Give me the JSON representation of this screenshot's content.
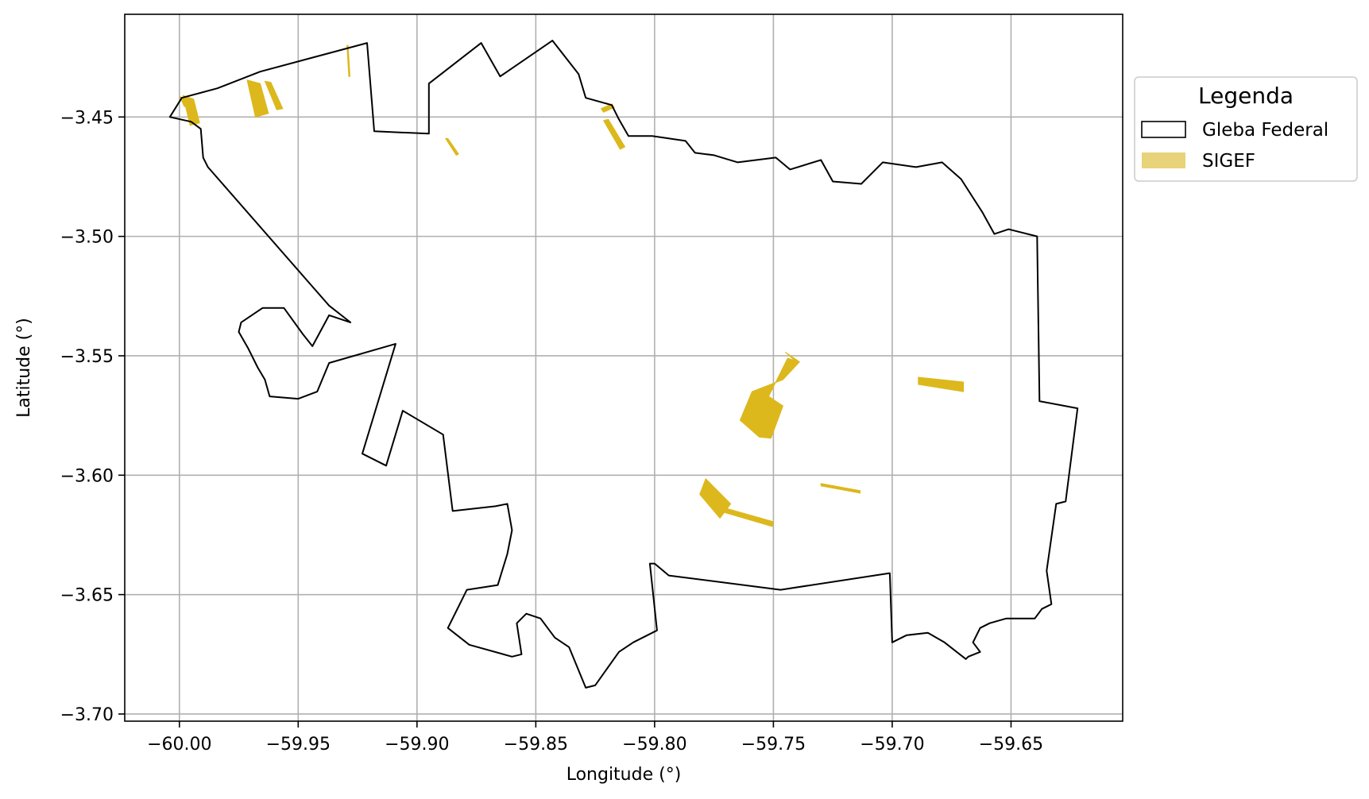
{
  "map": {
    "xlabel": "Longitude (°)",
    "ylabel": "Latitude (°)",
    "xlim": [
      -60.023,
      -59.603
    ],
    "ylim": [
      -3.703,
      -3.407
    ],
    "x_ticks": [
      {
        "value": -60.0,
        "label": "−60.00"
      },
      {
        "value": -59.95,
        "label": "−59.95"
      },
      {
        "value": -59.9,
        "label": "−59.90"
      },
      {
        "value": -59.85,
        "label": "−59.85"
      },
      {
        "value": -59.8,
        "label": "−59.80"
      },
      {
        "value": -59.75,
        "label": "−59.75"
      },
      {
        "value": -59.7,
        "label": "−59.70"
      },
      {
        "value": -59.65,
        "label": "−59.65"
      }
    ],
    "y_ticks": [
      {
        "value": -3.45,
        "label": "−3.45"
      },
      {
        "value": -3.5,
        "label": "−3.50"
      },
      {
        "value": -3.55,
        "label": "−3.55"
      },
      {
        "value": -3.6,
        "label": "−3.60"
      },
      {
        "value": -3.65,
        "label": "−3.65"
      },
      {
        "value": -3.7,
        "label": "−3.70"
      }
    ],
    "grid": true,
    "colors": {
      "boundary": "#000000",
      "sigef": "#dcb81c",
      "sigef_legend": "#e8d27a",
      "grid": "#b0b0b0"
    },
    "legend": {
      "title": "Legenda",
      "position": "outside-right-top",
      "items": [
        {
          "label": "Gleba Federal",
          "kind": "boundary"
        },
        {
          "label": "SIGEF",
          "kind": "sigef"
        }
      ]
    },
    "gleba_boundary": [
      [
        -60.004,
        -3.45
      ],
      [
        -59.999,
        -3.442
      ],
      [
        -59.984,
        -3.438
      ],
      [
        -59.966,
        -3.431
      ],
      [
        -59.921,
        -3.419
      ],
      [
        -59.918,
        -3.456
      ],
      [
        -59.895,
        -3.457
      ],
      [
        -59.895,
        -3.436
      ],
      [
        -59.873,
        -3.419
      ],
      [
        -59.865,
        -3.433
      ],
      [
        -59.843,
        -3.418
      ],
      [
        -59.832,
        -3.432
      ],
      [
        -59.829,
        -3.442
      ],
      [
        -59.818,
        -3.445
      ],
      [
        -59.815,
        -3.451
      ],
      [
        -59.811,
        -3.458
      ],
      [
        -59.801,
        -3.458
      ],
      [
        -59.787,
        -3.46
      ],
      [
        -59.783,
        -3.465
      ],
      [
        -59.775,
        -3.466
      ],
      [
        -59.765,
        -3.469
      ],
      [
        -59.749,
        -3.467
      ],
      [
        -59.743,
        -3.472
      ],
      [
        -59.73,
        -3.468
      ],
      [
        -59.725,
        -3.477
      ],
      [
        -59.713,
        -3.478
      ],
      [
        -59.704,
        -3.469
      ],
      [
        -59.69,
        -3.471
      ],
      [
        -59.679,
        -3.469
      ],
      [
        -59.671,
        -3.476
      ],
      [
        -59.662,
        -3.49
      ],
      [
        -59.657,
        -3.499
      ],
      [
        -59.651,
        -3.497
      ],
      [
        -59.639,
        -3.5
      ],
      [
        -59.638,
        -3.569
      ],
      [
        -59.622,
        -3.572
      ],
      [
        -59.627,
        -3.611
      ],
      [
        -59.631,
        -3.612
      ],
      [
        -59.635,
        -3.64
      ],
      [
        -59.633,
        -3.654
      ],
      [
        -59.637,
        -3.656
      ],
      [
        -59.64,
        -3.66
      ],
      [
        -59.652,
        -3.66
      ],
      [
        -59.659,
        -3.662
      ],
      [
        -59.663,
        -3.664
      ],
      [
        -59.666,
        -3.67
      ],
      [
        -59.663,
        -3.674
      ],
      [
        -59.668,
        -3.676
      ],
      [
        -59.669,
        -3.677
      ],
      [
        -59.678,
        -3.67
      ],
      [
        -59.685,
        -3.666
      ],
      [
        -59.694,
        -3.667
      ],
      [
        -59.7,
        -3.67
      ],
      [
        -59.701,
        -3.641
      ],
      [
        -59.747,
        -3.648
      ],
      [
        -59.794,
        -3.642
      ],
      [
        -59.8,
        -3.637
      ],
      [
        -59.802,
        -3.637
      ],
      [
        -59.799,
        -3.665
      ],
      [
        -59.809,
        -3.67
      ],
      [
        -59.815,
        -3.674
      ],
      [
        -59.825,
        -3.688
      ],
      [
        -59.829,
        -3.689
      ],
      [
        -59.836,
        -3.672
      ],
      [
        -59.842,
        -3.668
      ],
      [
        -59.848,
        -3.66
      ],
      [
        -59.854,
        -3.658
      ],
      [
        -59.858,
        -3.662
      ],
      [
        -59.856,
        -3.675
      ],
      [
        -59.86,
        -3.676
      ],
      [
        -59.878,
        -3.671
      ],
      [
        -59.887,
        -3.664
      ],
      [
        -59.879,
        -3.648
      ],
      [
        -59.866,
        -3.646
      ],
      [
        -59.862,
        -3.633
      ],
      [
        -59.86,
        -3.623
      ],
      [
        -59.862,
        -3.612
      ],
      [
        -59.867,
        -3.613
      ],
      [
        -59.885,
        -3.615
      ],
      [
        -59.889,
        -3.583
      ],
      [
        -59.906,
        -3.573
      ],
      [
        -59.913,
        -3.596
      ],
      [
        -59.923,
        -3.591
      ],
      [
        -59.909,
        -3.545
      ],
      [
        -59.937,
        -3.553
      ],
      [
        -59.942,
        -3.565
      ],
      [
        -59.95,
        -3.568
      ],
      [
        -59.962,
        -3.567
      ],
      [
        -59.964,
        -3.56
      ],
      [
        -59.967,
        -3.555
      ],
      [
        -59.971,
        -3.547
      ],
      [
        -59.975,
        -3.54
      ],
      [
        -59.974,
        -3.536
      ],
      [
        -59.965,
        -3.53
      ],
      [
        -59.956,
        -3.53
      ],
      [
        -59.948,
        -3.541
      ],
      [
        -59.944,
        -3.546
      ],
      [
        -59.937,
        -3.533
      ],
      [
        -59.928,
        -3.536
      ],
      [
        -59.937,
        -3.529
      ],
      [
        -59.988,
        -3.471
      ],
      [
        -59.99,
        -3.467
      ],
      [
        -59.991,
        -3.455
      ],
      [
        -59.995,
        -3.452
      ],
      [
        -60.004,
        -3.45
      ]
    ],
    "sigef_parcels": [
      [
        [
          -59.9985,
          -3.441
        ],
        [
          -59.994,
          -3.4425
        ],
        [
          -59.9915,
          -3.4525
        ],
        [
          -59.9955,
          -3.4535
        ]
      ],
      [
        [
          -59.9998,
          -3.4415
        ],
        [
          -59.997,
          -3.4425
        ],
        [
          -59.995,
          -3.4465
        ],
        [
          -59.998,
          -3.4455
        ]
      ],
      [
        [
          -59.9715,
          -3.4345
        ],
        [
          -59.966,
          -3.436
        ],
        [
          -59.9625,
          -3.4485
        ],
        [
          -59.968,
          -3.45
        ]
      ],
      [
        [
          -59.964,
          -3.435
        ],
        [
          -59.9615,
          -3.4355
        ],
        [
          -59.9565,
          -3.4465
        ],
        [
          -59.959,
          -3.447
        ]
      ],
      [
        [
          -59.9295,
          -3.42
        ],
        [
          -59.929,
          -3.42
        ],
        [
          -59.9282,
          -3.433
        ],
        [
          -59.9287,
          -3.433
        ]
      ],
      [
        [
          -59.888,
          -3.459
        ],
        [
          -59.887,
          -3.459
        ],
        [
          -59.8825,
          -3.4655
        ],
        [
          -59.8835,
          -3.466
        ]
      ],
      [
        [
          -59.8225,
          -3.4465
        ],
        [
          -59.818,
          -3.4445
        ],
        [
          -59.817,
          -3.446
        ],
        [
          -59.8215,
          -3.448
        ]
      ],
      [
        [
          -59.8215,
          -3.4515
        ],
        [
          -59.8195,
          -3.451
        ],
        [
          -59.8125,
          -3.4625
        ],
        [
          -59.8145,
          -3.4635
        ]
      ],
      [
        [
          -59.764,
          -3.577
        ],
        [
          -59.756,
          -3.584
        ],
        [
          -59.751,
          -3.5845
        ],
        [
          -59.746,
          -3.571
        ],
        [
          -59.752,
          -3.567
        ],
        [
          -59.744,
          -3.551
        ],
        [
          -59.741,
          -3.552
        ],
        [
          -59.745,
          -3.5485
        ],
        [
          -59.739,
          -3.5525
        ],
        [
          -59.746,
          -3.56
        ],
        [
          -59.759,
          -3.565
        ]
      ],
      [
        [
          -59.689,
          -3.559
        ],
        [
          -59.689,
          -3.562
        ],
        [
          -59.67,
          -3.565
        ],
        [
          -59.67,
          -3.561
        ]
      ],
      [
        [
          -59.781,
          -3.608
        ],
        [
          -59.7785,
          -3.6015
        ],
        [
          -59.768,
          -3.612
        ],
        [
          -59.7725,
          -3.618
        ]
      ],
      [
        [
          -59.771,
          -3.6155
        ],
        [
          -59.7695,
          -3.614
        ],
        [
          -59.75,
          -3.6195
        ],
        [
          -59.7505,
          -3.6215
        ]
      ],
      [
        [
          -59.73,
          -3.6035
        ],
        [
          -59.7135,
          -3.6065
        ],
        [
          -59.7135,
          -3.6075
        ],
        [
          -59.73,
          -3.6045
        ]
      ]
    ]
  }
}
